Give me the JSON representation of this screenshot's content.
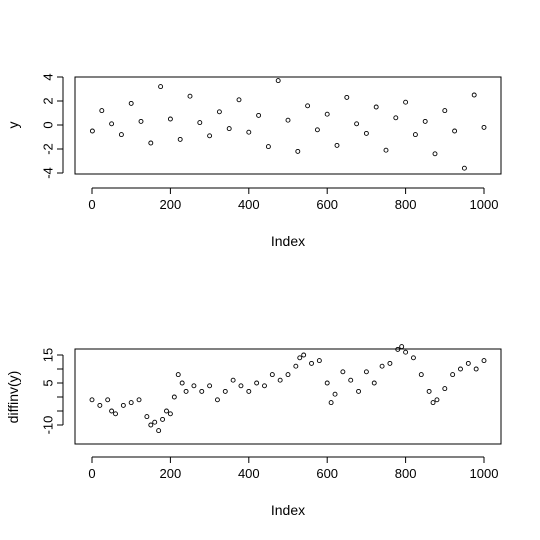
{
  "chart_data": [
    {
      "type": "scatter",
      "title": "",
      "xlabel": "Index",
      "ylabel": "y",
      "xlim": [
        0,
        1000
      ],
      "ylim": [
        -4,
        4
      ],
      "x_ticks": [
        "0",
        "200",
        "400",
        "600",
        "800",
        "1000"
      ],
      "y_ticks": [
        "-4",
        "-2",
        "0",
        "2",
        "4"
      ],
      "series": [
        {
          "marker": "open-circle",
          "x": [
            1,
            25,
            50,
            75,
            100,
            125,
            150,
            175,
            200,
            225,
            250,
            275,
            300,
            325,
            350,
            375,
            400,
            425,
            450,
            475,
            500,
            525,
            550,
            575,
            600,
            625,
            650,
            675,
            700,
            725,
            750,
            775,
            800,
            825,
            850,
            875,
            900,
            925,
            950,
            975,
            1000
          ],
          "values": [
            -0.5,
            1.2,
            0.1,
            -0.8,
            1.8,
            0.3,
            -1.5,
            3.2,
            0.5,
            -1.2,
            2.4,
            0.2,
            -0.9,
            1.1,
            -0.3,
            2.1,
            -0.6,
            0.8,
            -1.8,
            3.7,
            0.4,
            -2.2,
            1.6,
            -0.4,
            0.9,
            -1.7,
            2.3,
            0.1,
            -0.7,
            1.5,
            -2.1,
            0.6,
            1.9,
            -0.8,
            0.3,
            -2.4,
            1.2,
            -0.5,
            -3.6,
            2.5,
            -0.2
          ]
        }
      ]
    },
    {
      "type": "scatter",
      "title": "",
      "xlabel": "Index",
      "ylabel": "diffinv(y)",
      "xlim": [
        0,
        1000
      ],
      "ylim": [
        -15,
        20
      ],
      "x_ticks": [
        "0",
        "200",
        "400",
        "600",
        "800",
        "1000"
      ],
      "y_ticks": [
        "-10",
        "-5",
        "0",
        "5",
        "10",
        "15"
      ],
      "series": [
        {
          "marker": "open-circle",
          "x": [
            0,
            20,
            40,
            50,
            60,
            80,
            100,
            120,
            140,
            150,
            160,
            170,
            180,
            190,
            200,
            210,
            220,
            230,
            240,
            260,
            280,
            300,
            320,
            340,
            360,
            380,
            400,
            420,
            440,
            460,
            480,
            500,
            520,
            530,
            540,
            560,
            580,
            600,
            610,
            620,
            640,
            660,
            680,
            700,
            720,
            740,
            760,
            780,
            790,
            800,
            820,
            840,
            860,
            870,
            880,
            900,
            920,
            940,
            960,
            980,
            1000
          ],
          "values": [
            -1,
            -3,
            -1,
            -5,
            -6,
            -3,
            -2,
            -1,
            -7,
            -10,
            -9,
            -12,
            -8,
            -5,
            -6,
            0,
            8,
            5,
            2,
            4,
            2,
            4,
            -1,
            2,
            6,
            4,
            2,
            5,
            4,
            8,
            6,
            8,
            11,
            14,
            15,
            12,
            13,
            5,
            -2,
            1,
            9,
            6,
            2,
            9,
            5,
            11,
            12,
            17,
            18,
            16,
            14,
            8,
            2,
            -2,
            -1,
            3,
            8,
            10,
            12,
            10,
            13
          ]
        }
      ]
    }
  ]
}
